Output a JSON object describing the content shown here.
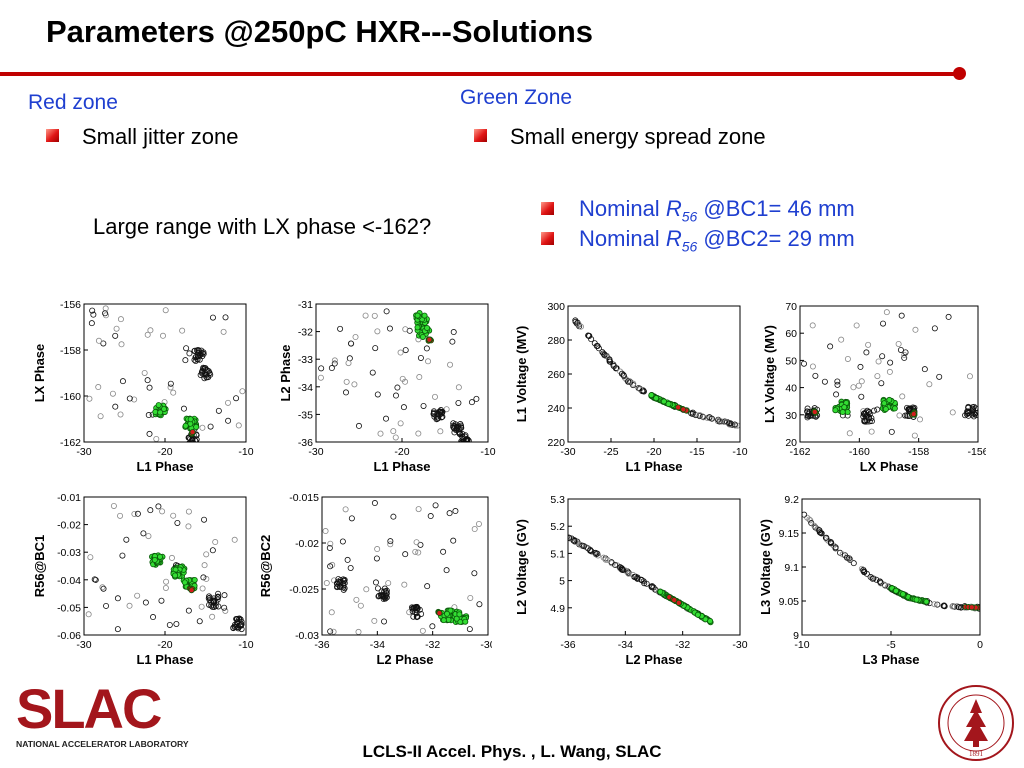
{
  "slide": {
    "title": "Parameters @250pC HXR---Solutions",
    "accent_color": "#c00000",
    "link_color": "#1f3fd0"
  },
  "red_zone": {
    "heading": "Red zone",
    "bullet": "Small jitter zone",
    "note": "Large range with LX phase <-162?"
  },
  "green_zone": {
    "heading": "Green Zone",
    "bullet": "Small energy spread zone",
    "nominal": [
      {
        "prefix": "Nominal ",
        "symbol": "R",
        "subscript": "56",
        "suffix": " @BC1= 46 mm"
      },
      {
        "prefix": "Nominal ",
        "symbol": "R",
        "subscript": "56",
        "suffix": " @BC2= 29 mm"
      }
    ]
  },
  "footer": "LCLS-II Accel. Phys. , L. Wang, SLAC",
  "logo": {
    "name": "SLAC",
    "tagline": "NATIONAL ACCELERATOR LABORATORY",
    "seal_year": "1891"
  },
  "chart_data": [
    {
      "type": "scatter",
      "id": "lx-vs-l1",
      "xlabel": "L1 Phase",
      "ylabel": "LX Phase",
      "xlim": [
        -30,
        -10
      ],
      "ylim": [
        -162,
        -156
      ],
      "xticks": [
        -30,
        -20,
        -10
      ],
      "yticks": [
        -156,
        -158,
        -160,
        -162
      ],
      "clusters": {
        "red": [
          [
            -16.5,
            -161.6
          ]
        ],
        "green": [
          [
            -20.5,
            -160.6
          ],
          [
            -16.8,
            -161.2
          ]
        ],
        "black": [
          [
            -15.8,
            -158.2
          ],
          [
            -15,
            -159
          ],
          [
            -16.5,
            -161.9
          ]
        ]
      }
    },
    {
      "type": "scatter",
      "id": "l2-vs-l1",
      "xlabel": "L1 Phase",
      "ylabel": "L2 Phase",
      "xlim": [
        -30,
        -10
      ],
      "ylim": [
        -36,
        -31
      ],
      "xticks": [
        -30,
        -20,
        -10
      ],
      "yticks": [
        -31,
        -32,
        -33,
        -34,
        -35,
        -36
      ],
      "clusters": {
        "red": [
          [
            -16.8,
            -32.3
          ]
        ],
        "green": [
          [
            -17.8,
            -31.5
          ],
          [
            -17.5,
            -32
          ]
        ],
        "black": [
          [
            -13.5,
            -35.5
          ],
          [
            -12.8,
            -35.9
          ],
          [
            -15.8,
            -35
          ]
        ]
      }
    },
    {
      "type": "scatter",
      "id": "r56bc1-vs-l1",
      "xlabel": "L1 Phase",
      "ylabel": "R56@BC1",
      "xlim": [
        -30,
        -10
      ],
      "ylim": [
        -0.06,
        -0.01
      ],
      "xticks": [
        -30,
        -20,
        -10
      ],
      "yticks": [
        -0.01,
        -0.02,
        -0.03,
        -0.04,
        -0.05,
        -0.06
      ],
      "clusters": {
        "red": [
          [
            -16.8,
            -0.0435
          ]
        ],
        "green": [
          [
            -18.3,
            -0.037
          ],
          [
            -17,
            -0.042
          ],
          [
            -21,
            -0.033
          ]
        ],
        "black": [
          [
            -18.5,
            -0.036
          ],
          [
            -14,
            -0.048
          ],
          [
            -11,
            -0.056
          ]
        ]
      }
    },
    {
      "type": "scatter",
      "id": "r56bc2-vs-l2",
      "xlabel": "L2 Phase",
      "ylabel": "R56@BC2",
      "xlim": [
        -36,
        -30
      ],
      "ylim": [
        -0.03,
        -0.015
      ],
      "xticks": [
        -36,
        -34,
        -32,
        -30
      ],
      "yticks": [
        -0.015,
        -0.02,
        -0.025,
        -0.03
      ],
      "clusters": {
        "red": [
          [
            -31.8,
            -0.0275
          ]
        ],
        "green": [
          [
            -31.5,
            -0.0278
          ],
          [
            -31,
            -0.028
          ]
        ],
        "black": [
          [
            -32.6,
            -0.0275
          ],
          [
            -35.3,
            -0.0245
          ],
          [
            -33.8,
            -0.0255
          ]
        ]
      }
    },
    {
      "type": "scatter",
      "id": "l1v-vs-l1",
      "xlabel": "L1 Phase",
      "ylabel": "L1 Voltage (MV)",
      "xlim": [
        -30,
        -10
      ],
      "ylim": [
        220,
        300
      ],
      "xticks": [
        -30,
        -25,
        -20,
        -15,
        -10
      ],
      "yticks": [
        220,
        240,
        260,
        280,
        300
      ],
      "curve": [
        [
          -30,
          296
        ],
        [
          -27,
          279
        ],
        [
          -25,
          267
        ],
        [
          -23,
          256
        ],
        [
          -21,
          249
        ],
        [
          -19,
          244
        ],
        [
          -17,
          240
        ],
        [
          -15,
          236
        ],
        [
          -12,
          232
        ],
        [
          -10,
          229
        ]
      ],
      "green_range": [
        -20.5,
        -17.5
      ],
      "red_range": [
        -17.3,
        -16
      ]
    },
    {
      "type": "scatter",
      "id": "lxv-vs-lx",
      "xlabel": "LX Phase",
      "ylabel": "LX Voltage (MV)",
      "xlim": [
        -162,
        -156
      ],
      "ylim": [
        20,
        70
      ],
      "xticks": [
        -162,
        -160,
        -158,
        -156
      ],
      "yticks": [
        20,
        30,
        40,
        50,
        60,
        70
      ],
      "clusters": {
        "red": [
          [
            -161.5,
            31
          ],
          [
            -158.2,
            30.5
          ]
        ],
        "green": [
          [
            -160.6,
            33
          ],
          [
            -159,
            33.5
          ]
        ],
        "black": [
          [
            -161.6,
            30.8
          ],
          [
            -159.7,
            29.5
          ],
          [
            -158.3,
            30.8
          ],
          [
            -156.2,
            31
          ]
        ]
      }
    },
    {
      "type": "scatter",
      "id": "l2v-vs-l2",
      "xlabel": "L2 Phase",
      "ylabel": "L2 Voltage (GV)",
      "xlim": [
        -36,
        -30
      ],
      "ylim": [
        4.8,
        5.3
      ],
      "xticks": [
        -36,
        -34,
        -32,
        -30
      ],
      "yticks": [
        4.9,
        5,
        5.1,
        5.2,
        5.3
      ],
      "curve": [
        [
          -36,
          5.16
        ],
        [
          -34,
          5.035
        ],
        [
          -32,
          4.91
        ],
        [
          -31,
          4.847
        ]
      ],
      "green_range": [
        -32.8,
        -31
      ],
      "red_range": [
        -32.5,
        -32.1
      ]
    },
    {
      "type": "scatter",
      "id": "l3v-vs-l3",
      "xlabel": "L3 Phase",
      "ylabel": "L3 Voltage (GV)",
      "xlim": [
        -10,
        0
      ],
      "ylim": [
        9,
        9.2
      ],
      "xticks": [
        -10,
        -5,
        0
      ],
      "yticks": [
        9,
        9.05,
        9.1,
        9.15,
        9.2
      ],
      "curve": [
        [
          -10,
          9.18
        ],
        [
          -8,
          9.125
        ],
        [
          -6,
          9.083
        ],
        [
          -4,
          9.055
        ],
        [
          -2,
          9.043
        ],
        [
          0,
          9.04
        ]
      ],
      "green_range": [
        -5,
        -3
      ],
      "red_range": [
        -1,
        -0.1
      ]
    }
  ]
}
